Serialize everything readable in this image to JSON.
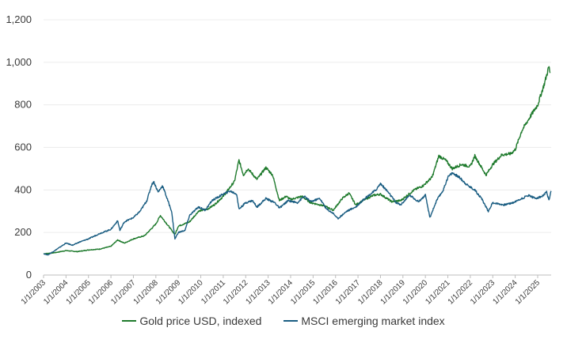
{
  "chart_data": {
    "type": "line",
    "title": "",
    "xlabel": "",
    "ylabel": "",
    "ylim": [
      0,
      1200
    ],
    "yticks": [
      0,
      200,
      400,
      600,
      800,
      1000,
      1200
    ],
    "ytick_labels": [
      "0",
      "200",
      "400",
      "600",
      "800",
      "1,000",
      "1,200"
    ],
    "grid": true,
    "legend_position": "bottom",
    "x_ticks": [
      "1/1/2003",
      "1/1/2004",
      "1/1/2005",
      "1/1/2006",
      "1/1/2007",
      "1/1/2008",
      "1/1/2009",
      "1/1/2010",
      "1/1/2011",
      "1/1/2012",
      "1/1/2013",
      "1/1/2014",
      "1/1/2015",
      "1/1/2016",
      "1/1/2017",
      "1/1/2018",
      "1/1/2019",
      "1/1/2020",
      "1/1/2021",
      "1/1/2022",
      "1/1/2023",
      "1/1/2024",
      "1/1/2025"
    ],
    "x_range": [
      2003.0,
      2025.6
    ],
    "series": [
      {
        "name": "Gold price USD, indexed",
        "color": "#1e7a2c",
        "points": [
          [
            2003.0,
            100
          ],
          [
            2003.5,
            105
          ],
          [
            2004.0,
            115
          ],
          [
            2004.5,
            110
          ],
          [
            2005.0,
            118
          ],
          [
            2005.5,
            122
          ],
          [
            2006.0,
            135
          ],
          [
            2006.3,
            165
          ],
          [
            2006.6,
            150
          ],
          [
            2007.0,
            170
          ],
          [
            2007.5,
            185
          ],
          [
            2008.0,
            240
          ],
          [
            2008.2,
            280
          ],
          [
            2008.6,
            225
          ],
          [
            2008.85,
            190
          ],
          [
            2009.0,
            230
          ],
          [
            2009.5,
            250
          ],
          [
            2009.9,
            300
          ],
          [
            2010.3,
            310
          ],
          [
            2010.6,
            330
          ],
          [
            2011.0,
            370
          ],
          [
            2011.5,
            440
          ],
          [
            2011.7,
            540
          ],
          [
            2011.9,
            470
          ],
          [
            2012.1,
            500
          ],
          [
            2012.5,
            450
          ],
          [
            2012.9,
            505
          ],
          [
            2013.2,
            470
          ],
          [
            2013.5,
            350
          ],
          [
            2013.8,
            370
          ],
          [
            2014.0,
            355
          ],
          [
            2014.5,
            370
          ],
          [
            2014.9,
            340
          ],
          [
            2015.5,
            325
          ],
          [
            2015.9,
            305
          ],
          [
            2016.3,
            360
          ],
          [
            2016.6,
            385
          ],
          [
            2016.9,
            330
          ],
          [
            2017.3,
            355
          ],
          [
            2017.7,
            375
          ],
          [
            2018.0,
            380
          ],
          [
            2018.5,
            345
          ],
          [
            2018.9,
            350
          ],
          [
            2019.5,
            400
          ],
          [
            2019.9,
            420
          ],
          [
            2020.3,
            460
          ],
          [
            2020.6,
            560
          ],
          [
            2020.9,
            540
          ],
          [
            2021.2,
            500
          ],
          [
            2021.6,
            520
          ],
          [
            2022.0,
            510
          ],
          [
            2022.2,
            560
          ],
          [
            2022.7,
            470
          ],
          [
            2023.0,
            520
          ],
          [
            2023.4,
            565
          ],
          [
            2023.8,
            570
          ],
          [
            2024.0,
            590
          ],
          [
            2024.3,
            680
          ],
          [
            2024.7,
            750
          ],
          [
            2025.0,
            800
          ],
          [
            2025.3,
            900
          ],
          [
            2025.5,
            980
          ],
          [
            2025.55,
            950
          ]
        ]
      },
      {
        "name": "MSCI emerging market index",
        "color": "#1a5d82",
        "points": [
          [
            2003.0,
            100
          ],
          [
            2003.2,
            95
          ],
          [
            2003.5,
            115
          ],
          [
            2004.0,
            150
          ],
          [
            2004.3,
            140
          ],
          [
            2004.6,
            155
          ],
          [
            2005.0,
            170
          ],
          [
            2005.5,
            195
          ],
          [
            2006.0,
            215
          ],
          [
            2006.3,
            255
          ],
          [
            2006.4,
            210
          ],
          [
            2006.6,
            250
          ],
          [
            2007.0,
            270
          ],
          [
            2007.3,
            300
          ],
          [
            2007.6,
            350
          ],
          [
            2007.8,
            420
          ],
          [
            2007.9,
            440
          ],
          [
            2008.1,
            390
          ],
          [
            2008.3,
            420
          ],
          [
            2008.5,
            360
          ],
          [
            2008.7,
            300
          ],
          [
            2008.85,
            170
          ],
          [
            2009.0,
            200
          ],
          [
            2009.3,
            210
          ],
          [
            2009.5,
            280
          ],
          [
            2009.9,
            320
          ],
          [
            2010.2,
            305
          ],
          [
            2010.5,
            350
          ],
          [
            2011.0,
            380
          ],
          [
            2011.3,
            395
          ],
          [
            2011.6,
            380
          ],
          [
            2011.7,
            310
          ],
          [
            2012.0,
            340
          ],
          [
            2012.3,
            350
          ],
          [
            2012.5,
            320
          ],
          [
            2012.9,
            360
          ],
          [
            2013.3,
            340
          ],
          [
            2013.5,
            315
          ],
          [
            2013.9,
            350
          ],
          [
            2014.3,
            340
          ],
          [
            2014.6,
            370
          ],
          [
            2014.9,
            345
          ],
          [
            2015.3,
            360
          ],
          [
            2015.6,
            310
          ],
          [
            2015.9,
            290
          ],
          [
            2016.1,
            265
          ],
          [
            2016.5,
            300
          ],
          [
            2016.9,
            320
          ],
          [
            2017.3,
            360
          ],
          [
            2017.8,
            400
          ],
          [
            2018.0,
            430
          ],
          [
            2018.3,
            395
          ],
          [
            2018.7,
            340
          ],
          [
            2018.9,
            330
          ],
          [
            2019.3,
            375
          ],
          [
            2019.7,
            345
          ],
          [
            2020.0,
            375
          ],
          [
            2020.2,
            270
          ],
          [
            2020.5,
            350
          ],
          [
            2020.8,
            400
          ],
          [
            2021.0,
            460
          ],
          [
            2021.2,
            480
          ],
          [
            2021.5,
            460
          ],
          [
            2021.9,
            420
          ],
          [
            2022.2,
            400
          ],
          [
            2022.5,
            360
          ],
          [
            2022.8,
            300
          ],
          [
            2023.0,
            340
          ],
          [
            2023.5,
            330
          ],
          [
            2023.9,
            340
          ],
          [
            2024.3,
            360
          ],
          [
            2024.6,
            375
          ],
          [
            2024.9,
            360
          ],
          [
            2025.2,
            370
          ],
          [
            2025.4,
            390
          ],
          [
            2025.5,
            350
          ],
          [
            2025.6,
            395
          ]
        ]
      }
    ]
  }
}
